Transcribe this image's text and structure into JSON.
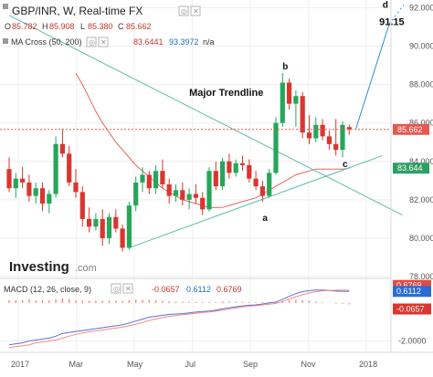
{
  "header": {
    "title": "GBP/INR, W, Real-time FX",
    "ohlc_o_label": "O",
    "ohlc_o": "85.782",
    "ohlc_h_label": "H",
    "ohlc_h": "85.908",
    "ohlc_l_label": "L",
    "ohlc_l": "85.380",
    "ohlc_c_label": "C",
    "ohlc_c": "85.662",
    "ma_label": "MA Cross (50, 200)",
    "ma_value_1": "83.6441",
    "ma_value_2": "93.3972",
    "ma_value_3": "n/a",
    "macd_label": "MACD (12, 26, close, 9)",
    "macd_value_1": "-0.0657",
    "macd_value_2": "0.6112",
    "macd_value_3": "0.6769"
  },
  "logo": {
    "brand": "Investing",
    "suffix": ".com"
  },
  "colors": {
    "up": "#26a65b",
    "down": "#d9362f",
    "trendline": "#5bbfaa",
    "ma_fast": "#e0685e",
    "macd_line": "#5b6fd6",
    "signal_line": "#f28a82",
    "price_badge": "#e45a4f",
    "ma_badge": "#2f9e63",
    "macd_badge_blue": "#2b6bd6",
    "macd_badge_red": "#e24b43",
    "macd_badge_red2": "#d9362f",
    "projection": "#2e8fd6"
  },
  "chart_data": {
    "type": "candlestick",
    "title": "GBP/INR, W, Real-time FX",
    "x_ticks": [
      "2017",
      "Mar",
      "May",
      "Jul",
      "Sep",
      "Nov",
      "2018"
    ],
    "y_ticks": [
      92.0,
      90.0,
      88.0,
      86.0,
      84.0,
      82.0,
      80.0,
      78.0
    ],
    "y_tick_labels": [
      "92.000",
      "90.000",
      "88.000",
      "86.000",
      "84.000",
      "82.000",
      "80.000",
      "78.000"
    ],
    "ylim": [
      78.0,
      92.4
    ],
    "grid": true,
    "candles_ohlc": [
      [
        83.6,
        84.2,
        82.4,
        82.6
      ],
      [
        82.6,
        83.4,
        82.1,
        83.1
      ],
      [
        83.1,
        83.7,
        82.6,
        82.9
      ],
      [
        82.9,
        83.3,
        81.9,
        82.2
      ],
      [
        82.2,
        82.9,
        81.8,
        82.6
      ],
      [
        82.6,
        82.9,
        81.4,
        81.8
      ],
      [
        81.8,
        82.5,
        81.3,
        82.3
      ],
      [
        82.3,
        85.3,
        82.1,
        84.9
      ],
      [
        84.9,
        85.7,
        84.2,
        84.4
      ],
      [
        84.4,
        84.8,
        82.7,
        82.9
      ],
      [
        82.9,
        83.6,
        82.1,
        82.4
      ],
      [
        82.4,
        82.7,
        80.6,
        81.0
      ],
      [
        81.0,
        81.6,
        80.3,
        80.6
      ],
      [
        80.6,
        81.3,
        80.4,
        81.0
      ],
      [
        81.0,
        81.5,
        79.6,
        80.0
      ],
      [
        80.0,
        81.3,
        79.7,
        81.1
      ],
      [
        81.1,
        81.5,
        80.3,
        80.5
      ],
      [
        80.5,
        80.7,
        79.3,
        79.5
      ],
      [
        79.5,
        81.9,
        79.4,
        81.7
      ],
      [
        81.7,
        83.2,
        81.4,
        82.9
      ],
      [
        82.9,
        83.7,
        82.4,
        83.3
      ],
      [
        83.3,
        83.5,
        82.3,
        82.6
      ],
      [
        82.6,
        83.8,
        82.3,
        83.5
      ],
      [
        83.5,
        84.1,
        82.6,
        82.8
      ],
      [
        82.8,
        83.1,
        81.8,
        82.2
      ],
      [
        82.2,
        82.8,
        81.9,
        82.5
      ],
      [
        82.5,
        82.9,
        81.7,
        82.0
      ],
      [
        82.0,
        82.6,
        81.5,
        82.3
      ],
      [
        82.3,
        82.8,
        81.8,
        82.1
      ],
      [
        82.1,
        82.4,
        81.2,
        81.5
      ],
      [
        81.5,
        83.7,
        81.4,
        83.5
      ],
      [
        83.5,
        84.0,
        82.5,
        82.7
      ],
      [
        82.7,
        84.2,
        82.5,
        84.0
      ],
      [
        84.0,
        84.4,
        83.1,
        83.4
      ],
      [
        83.4,
        84.1,
        83.2,
        83.9
      ],
      [
        83.9,
        84.3,
        83.5,
        83.8
      ],
      [
        83.8,
        84.1,
        82.9,
        83.1
      ],
      [
        83.1,
        83.5,
        82.5,
        82.7
      ],
      [
        82.7,
        83.0,
        81.9,
        82.2
      ],
      [
        82.2,
        83.6,
        82.1,
        83.4
      ],
      [
        83.4,
        86.3,
        83.3,
        86.0
      ],
      [
        86.0,
        88.6,
        85.8,
        88.1
      ],
      [
        88.1,
        88.3,
        86.7,
        87.0
      ],
      [
        87.0,
        87.7,
        85.8,
        87.4
      ],
      [
        87.4,
        87.6,
        85.2,
        85.5
      ],
      [
        85.5,
        86.4,
        84.9,
        85.2
      ],
      [
        85.2,
        86.3,
        85.0,
        85.9
      ],
      [
        85.9,
        86.2,
        85.1,
        85.3
      ],
      [
        85.3,
        85.6,
        84.6,
        84.9
      ],
      [
        84.9,
        86.2,
        84.3,
        84.6
      ],
      [
        84.6,
        86.1,
        84.2,
        85.9
      ],
      [
        85.782,
        85.908,
        85.38,
        85.662
      ]
    ],
    "series": [
      {
        "name": "MA Cross (50, 200)",
        "type": "line",
        "values": [
          null,
          null,
          null,
          null,
          null,
          null,
          null,
          null,
          null,
          null,
          88.6,
          88.0,
          87.3,
          86.6,
          86.0,
          85.5,
          85.0,
          84.6,
          84.2,
          83.8,
          83.5,
          83.2,
          82.9,
          82.6,
          82.4,
          82.2,
          82.0,
          81.9,
          81.8,
          81.7,
          81.6,
          81.6,
          81.6,
          81.7,
          81.8,
          81.9,
          82.0,
          82.1,
          82.3,
          82.5,
          82.7,
          82.9,
          83.1,
          83.3,
          83.4,
          83.5,
          83.6,
          83.6,
          83.6,
          83.6,
          83.6,
          83.644
        ]
      }
    ],
    "trendlines": [
      {
        "from": [
          0,
          91.6
        ],
        "to": [
          59,
          81.2
        ]
      },
      {
        "from": [
          18,
          79.5
        ],
        "to": [
          56,
          84.3
        ]
      }
    ],
    "projection": [
      [
        52,
        85.7
      ],
      [
        57,
        91.15
      ]
    ],
    "annotations": [
      {
        "text": "Major Trendline",
        "x": 27,
        "y": 87.4
      },
      {
        "text": "a",
        "x": 38,
        "y": 80.9
      },
      {
        "text": "b",
        "x": 41,
        "y": 88.8
      },
      {
        "text": "c",
        "x": 50,
        "y": 83.7
      },
      {
        "text": "d",
        "x": 56,
        "y": 92.0
      },
      {
        "text": "91.15",
        "x": 55.5,
        "y": 91.1
      }
    ],
    "current_price_label": "85.662",
    "ma_value_label": "83.644",
    "macd": {
      "y_ticks": [
        -2.0
      ],
      "y_tick_labels": [
        "-2.0000"
      ],
      "ylim": [
        -2.6,
        1.2
      ],
      "macd_line": [
        -2.2,
        -2.15,
        -2.1,
        -2.0,
        -1.95,
        -1.9,
        -1.85,
        -1.75,
        -1.6,
        -1.55,
        -1.5,
        -1.45,
        -1.4,
        -1.35,
        -1.3,
        -1.25,
        -1.2,
        -1.15,
        -1.05,
        -0.95,
        -0.85,
        -0.75,
        -0.7,
        -0.65,
        -0.6,
        -0.58,
        -0.56,
        -0.52,
        -0.48,
        -0.45,
        -0.42,
        -0.38,
        -0.3,
        -0.25,
        -0.2,
        -0.15,
        -0.12,
        -0.1,
        -0.05,
        0.0,
        0.05,
        0.2,
        0.35,
        0.5,
        0.6,
        0.65,
        0.68,
        0.68,
        0.66,
        0.63,
        0.62,
        0.6112
      ],
      "signal_line": [
        -2.35,
        -2.3,
        -2.25,
        -2.2,
        -2.1,
        -2.05,
        -2.0,
        -1.95,
        -1.85,
        -1.75,
        -1.65,
        -1.58,
        -1.52,
        -1.47,
        -1.42,
        -1.37,
        -1.32,
        -1.27,
        -1.2,
        -1.12,
        -1.02,
        -0.92,
        -0.84,
        -0.77,
        -0.7,
        -0.66,
        -0.62,
        -0.58,
        -0.54,
        -0.5,
        -0.47,
        -0.43,
        -0.38,
        -0.32,
        -0.26,
        -0.21,
        -0.17,
        -0.14,
        -0.1,
        -0.06,
        -0.02,
        0.08,
        0.2,
        0.33,
        0.44,
        0.53,
        0.6,
        0.64,
        0.66,
        0.67,
        0.675,
        0.6769
      ],
      "histogram": [
        0.15,
        0.15,
        0.15,
        0.2,
        0.15,
        0.15,
        0.15,
        0.2,
        0.25,
        0.2,
        0.15,
        0.13,
        0.12,
        0.12,
        0.12,
        0.12,
        0.12,
        0.12,
        0.15,
        0.17,
        0.17,
        0.17,
        0.14,
        0.12,
        0.1,
        0.08,
        0.06,
        0.06,
        0.06,
        0.05,
        0.05,
        0.05,
        0.08,
        0.07,
        0.06,
        0.06,
        0.05,
        0.04,
        0.05,
        0.06,
        0.07,
        0.12,
        0.15,
        0.17,
        0.16,
        0.12,
        0.08,
        0.04,
        0.0,
        -0.04,
        -0.055,
        -0.0657
      ]
    }
  }
}
